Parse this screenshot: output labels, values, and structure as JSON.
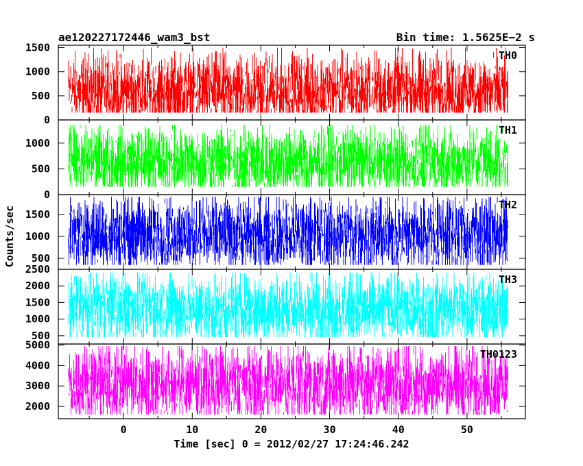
{
  "header": {
    "left": "ae120227172446_wam3_bst",
    "right": "Bin time: 1.5625E−2 s"
  },
  "chart_data": {
    "type": "line",
    "xlabel": "Time [sec] 0 = 2012/02/27 17:24:46.242",
    "ylabel": "Counts/sec",
    "xlim": [
      -9.5,
      58.5
    ],
    "x_ticks": [
      0,
      10,
      20,
      30,
      40,
      50
    ],
    "x_range_data": [
      -8,
      56
    ],
    "panels": [
      {
        "name": "TH0",
        "color": "#ff0000",
        "ylim": [
          0,
          1550
        ],
        "y_ticks": [
          0,
          500,
          1000,
          1500
        ],
        "mean": 600,
        "low": 150,
        "high": 1500
      },
      {
        "name": "TH1",
        "color": "#00ff00",
        "ylim": [
          0,
          1450
        ],
        "y_ticks": [
          0,
          500,
          1000
        ],
        "mean": 650,
        "low": 150,
        "high": 1350
      },
      {
        "name": "TH2",
        "color": "#0000ff",
        "ylim": [
          250,
          1950
        ],
        "y_ticks": [
          500,
          1000,
          1500
        ],
        "mean": 1050,
        "low": 350,
        "high": 1900
      },
      {
        "name": "TH3",
        "color": "#00ffff",
        "ylim": [
          250,
          2500
        ],
        "y_ticks": [
          500,
          1000,
          1500,
          2000,
          2500
        ],
        "mean": 1300,
        "low": 450,
        "high": 2400
      },
      {
        "name": "TH0123",
        "color": "#ff00ff",
        "ylim": [
          1400,
          5050
        ],
        "y_ticks": [
          2000,
          3000,
          4000,
          5000
        ],
        "mean": 3100,
        "low": 1600,
        "high": 4950
      }
    ]
  }
}
